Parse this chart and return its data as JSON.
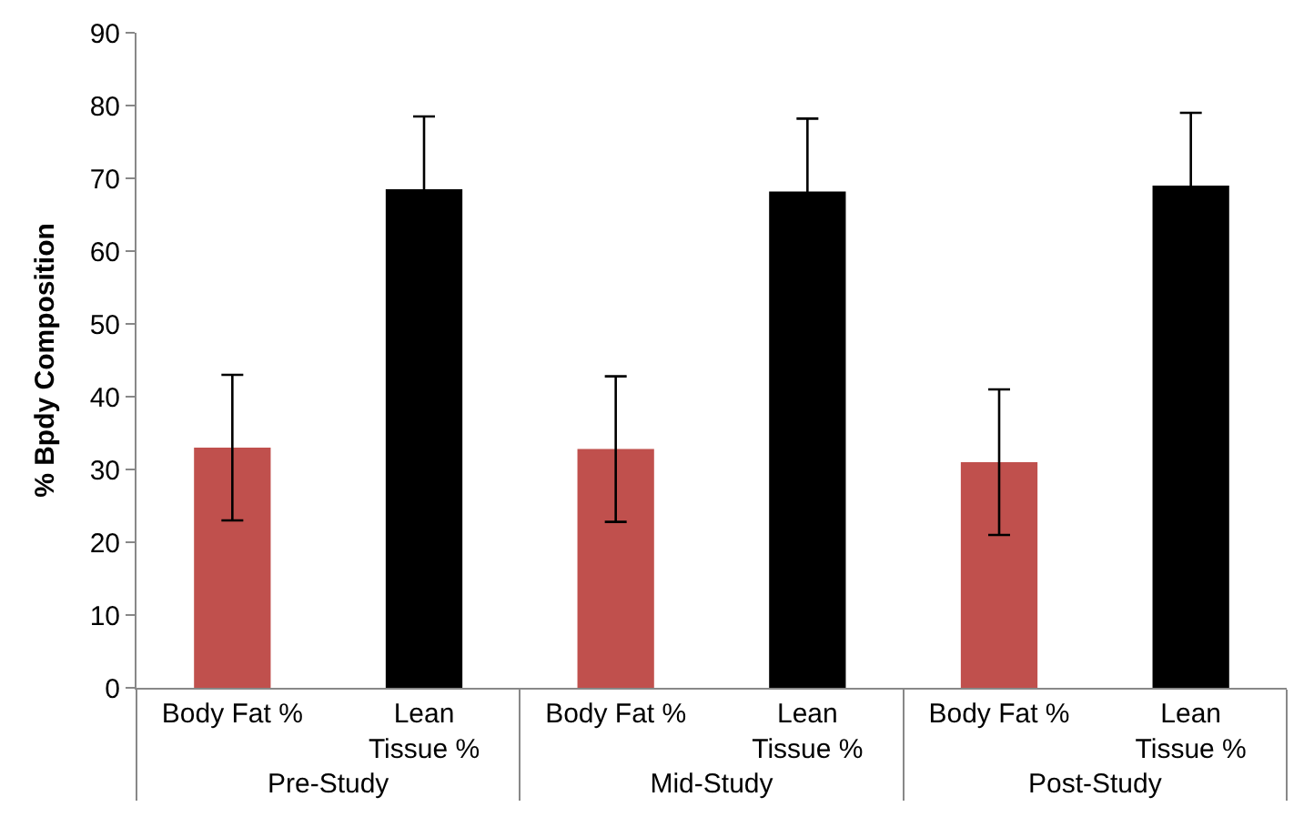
{
  "chart_data": {
    "type": "bar",
    "ylabel": "% Bpdy Composition",
    "categories": [
      "Body Fat %",
      "Lean Tissue %",
      "Body Fat %",
      "Lean Tissue %",
      "Body Fat %",
      "Lean Tissue %"
    ],
    "annotations": [
      "Pre-Study",
      "Mid-Study",
      "Post-Study"
    ],
    "values": [
      33,
      68.5,
      32.8,
      68.2,
      31,
      69
    ],
    "errors": [
      10,
      10,
      10,
      10,
      10,
      10
    ],
    "colors": [
      "#c0504d",
      "#000000",
      "#c0504d",
      "#000000",
      "#c0504d",
      "#000000"
    ],
    "ylim": [
      0,
      90
    ],
    "yticks": [
      0,
      10,
      20,
      30,
      40,
      50,
      60,
      70,
      80,
      90
    ]
  }
}
